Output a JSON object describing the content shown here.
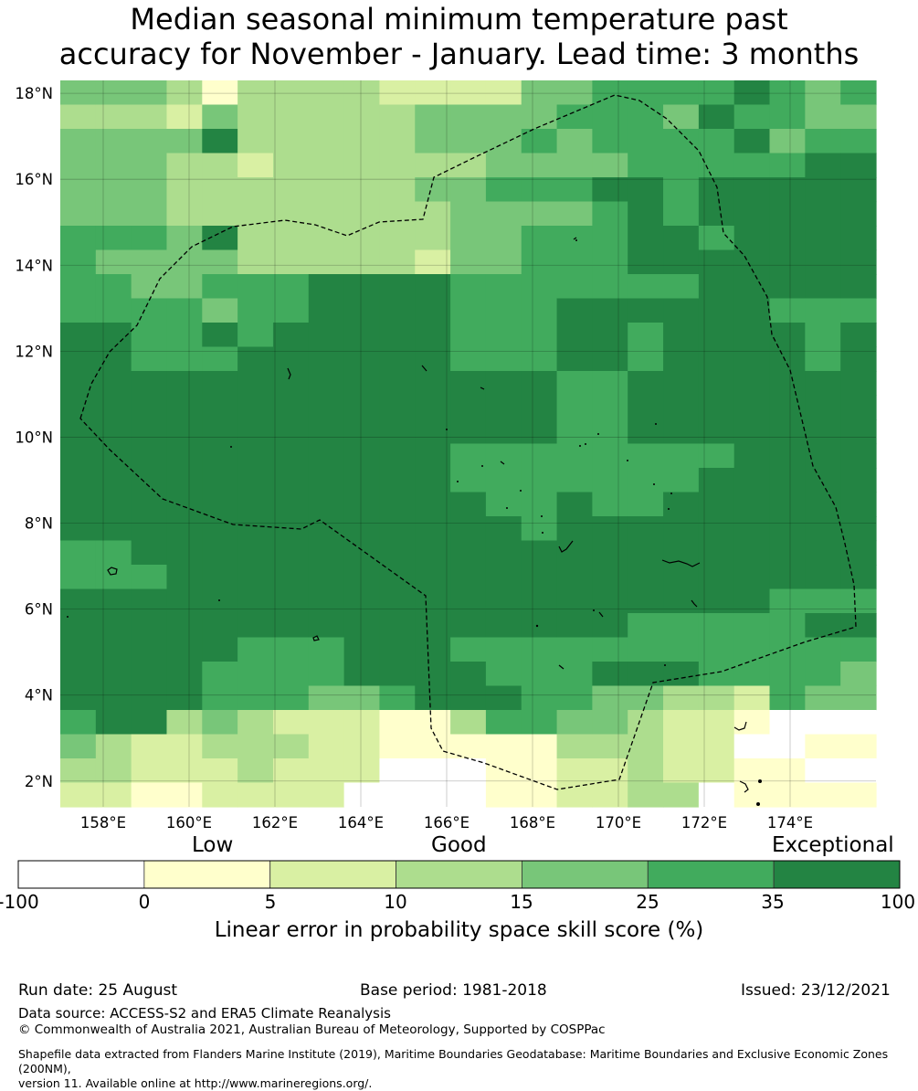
{
  "title": {
    "line1": "Median seasonal minimum temperature past",
    "line2": "accuracy for November - January. Lead time: 3 months"
  },
  "map": {
    "lat_range": [
      1.4,
      18.3
    ],
    "lon_range": [
      157.0,
      176.0
    ],
    "lat_ticks": [
      "18°N",
      "16°N",
      "14°N",
      "12°N",
      "10°N",
      "8°N",
      "6°N",
      "4°N",
      "2°N"
    ],
    "lon_ticks": [
      "158°E",
      "160°E",
      "162°E",
      "164°E",
      "166°E",
      "168°E",
      "170°E",
      "172°E",
      "174°E"
    ]
  },
  "legend": {
    "category_labels": [
      "Low",
      "Good",
      "Exceptional"
    ],
    "tick_labels": [
      "-100",
      "0",
      "5",
      "10",
      "15",
      "25",
      "35",
      "100"
    ],
    "colors": [
      "#ffffff",
      "#ffffcc",
      "#d9f0a3",
      "#addd8e",
      "#78c679",
      "#41ab5d",
      "#238443"
    ],
    "title": "Linear error in probability space skill score (%)"
  },
  "footer": {
    "run_date": "Run date: 25 August",
    "base_period": "Base period: 1981-2018",
    "issued": "Issued: 23/12/2021",
    "data_source": "Data source: ACCESS-S2 and ERA5 Climate Reanalysis",
    "copyright": "© Commonwealth of Australia 2021, Australian Bureau of Meteorology, Supported by COSPPac",
    "shapefile_line1": "Shapefile data extracted from Flanders Marine Institute (2019), Maritime Boundaries Geodatabase: Maritime Boundaries and Exclusive Economic Zones (200NM),",
    "shapefile_line2": "version 11. Available online at http://www.marineregions.org/."
  }
}
